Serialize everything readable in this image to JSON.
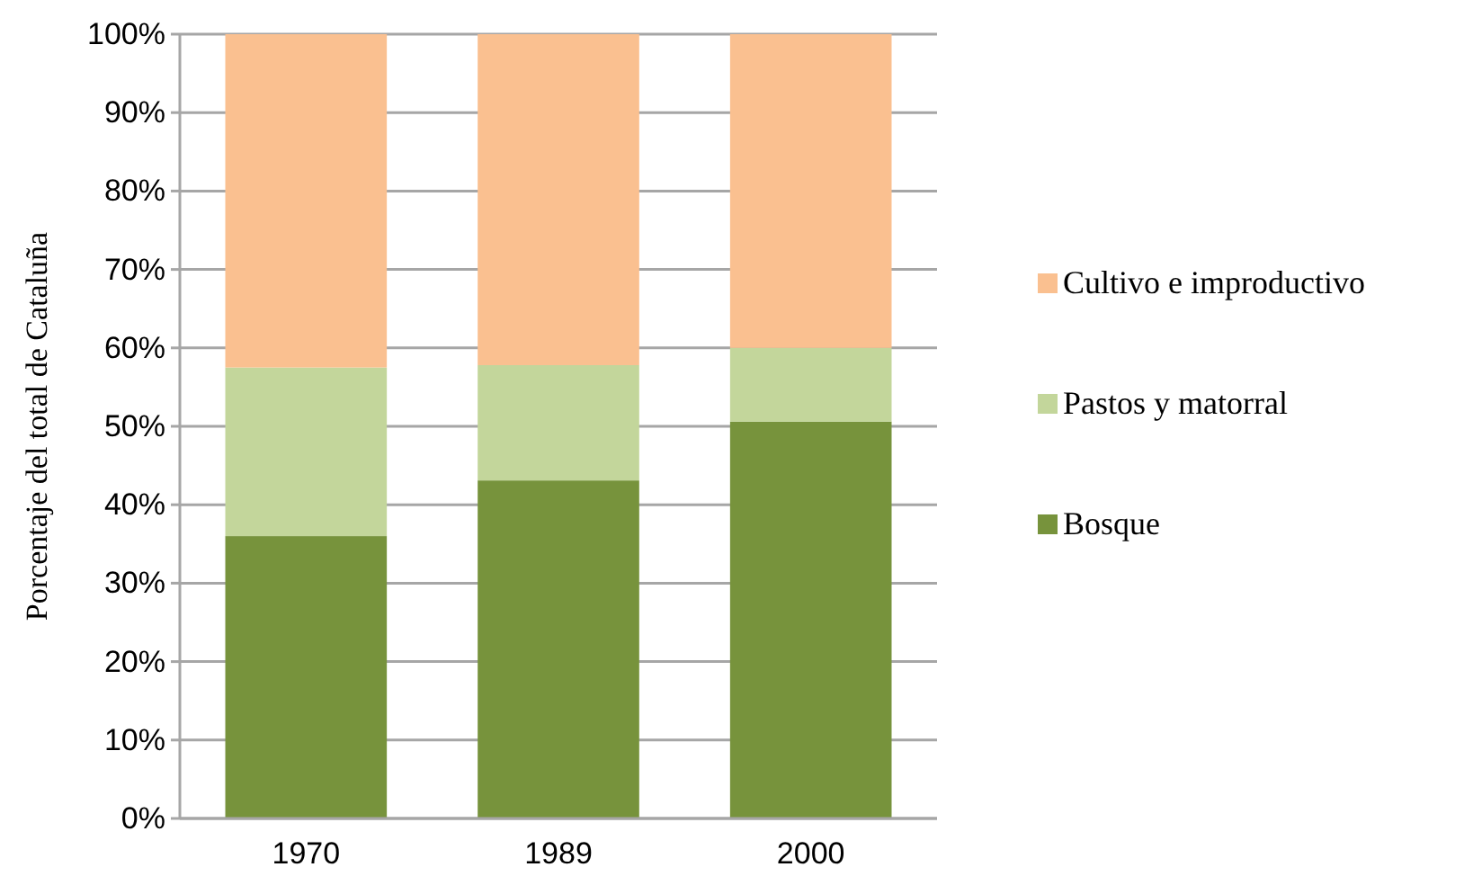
{
  "chart_data": {
    "type": "bar",
    "stacked": true,
    "ylabel": "Porcentaje del total de Cataluña",
    "categories": [
      "1970",
      "1989",
      "2000"
    ],
    "series": [
      {
        "name": "Bosque",
        "color": "#77933c",
        "values": [
          36,
          43.1,
          50.6
        ]
      },
      {
        "name": "Pastos y matorral",
        "color": "#c3d69b",
        "values": [
          21.5,
          14.7,
          9.4
        ]
      },
      {
        "name": "Cultivo e improductivo",
        "color": "#fac090",
        "values": [
          42.5,
          42.2,
          40
        ]
      }
    ],
    "ylim": [
      0,
      100
    ],
    "yticks": [
      {
        "value": 0,
        "label": "0%"
      },
      {
        "value": 10,
        "label": "10%"
      },
      {
        "value": 20,
        "label": "20%"
      },
      {
        "value": 30,
        "label": "30%"
      },
      {
        "value": 40,
        "label": "40%"
      },
      {
        "value": 50,
        "label": "50%"
      },
      {
        "value": 60,
        "label": "60%"
      },
      {
        "value": 70,
        "label": "70%"
      },
      {
        "value": 80,
        "label": "80%"
      },
      {
        "value": 90,
        "label": "90%"
      },
      {
        "value": 100,
        "label": "100%"
      }
    ],
    "grid": "y",
    "legend": "right"
  }
}
